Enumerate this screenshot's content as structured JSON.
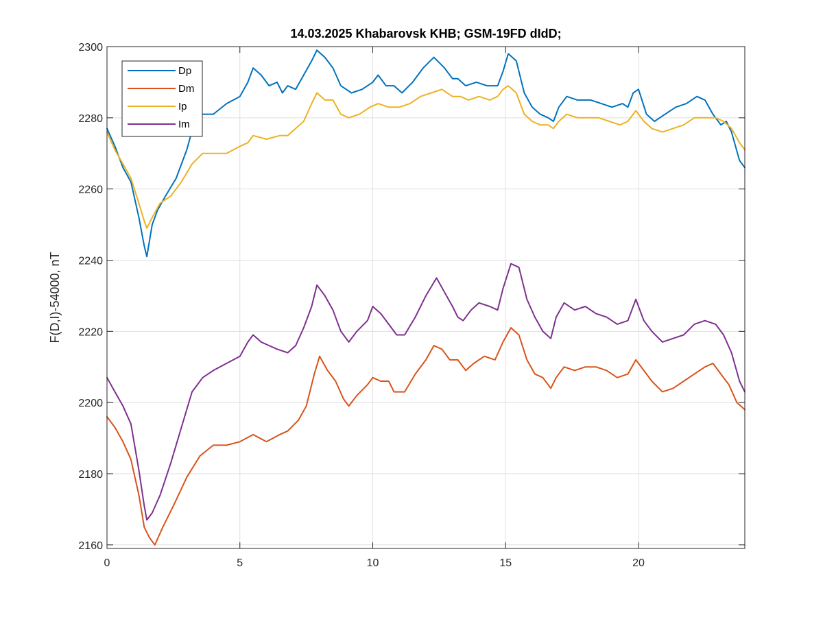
{
  "chart_data": {
    "type": "line",
    "title": "14.03.2025  Khabarovsk KHB; GSM-19FD dIdD;",
    "xlabel": "",
    "ylabel": "F(D,I)-54000, nT",
    "xlim": [
      0,
      24
    ],
    "ylim": [
      2159,
      2300
    ],
    "xticks": [
      0,
      5,
      10,
      15,
      20
    ],
    "yticks": [
      2160,
      2180,
      2200,
      2220,
      2240,
      2260,
      2280,
      2300
    ],
    "grid": true,
    "legend_position": "top-left",
    "series": [
      {
        "name": "Dp",
        "color": "#0072BD",
        "points": [
          [
            0,
            2277
          ],
          [
            0.3,
            2272
          ],
          [
            0.6,
            2266
          ],
          [
            0.9,
            2262
          ],
          [
            1.2,
            2252
          ],
          [
            1.4,
            2244
          ],
          [
            1.5,
            2241
          ],
          [
            1.7,
            2250
          ],
          [
            1.9,
            2254
          ],
          [
            2.2,
            2258
          ],
          [
            2.6,
            2263
          ],
          [
            3.0,
            2271
          ],
          [
            3.3,
            2279
          ],
          [
            3.6,
            2281
          ],
          [
            4.0,
            2281
          ],
          [
            4.5,
            2284
          ],
          [
            5.0,
            2286
          ],
          [
            5.3,
            2290
          ],
          [
            5.5,
            2294
          ],
          [
            5.8,
            2292
          ],
          [
            6.1,
            2289
          ],
          [
            6.4,
            2290
          ],
          [
            6.6,
            2287
          ],
          [
            6.8,
            2289
          ],
          [
            7.1,
            2288
          ],
          [
            7.4,
            2292
          ],
          [
            7.7,
            2296
          ],
          [
            7.9,
            2299
          ],
          [
            8.2,
            2297
          ],
          [
            8.5,
            2294
          ],
          [
            8.8,
            2289
          ],
          [
            9.2,
            2287
          ],
          [
            9.6,
            2288
          ],
          [
            10.0,
            2290
          ],
          [
            10.2,
            2292
          ],
          [
            10.5,
            2289
          ],
          [
            10.8,
            2289
          ],
          [
            11.1,
            2287
          ],
          [
            11.5,
            2290
          ],
          [
            11.9,
            2294
          ],
          [
            12.3,
            2297
          ],
          [
            12.7,
            2294
          ],
          [
            13.0,
            2291
          ],
          [
            13.2,
            2291
          ],
          [
            13.5,
            2289
          ],
          [
            13.9,
            2290
          ],
          [
            14.3,
            2289
          ],
          [
            14.7,
            2289
          ],
          [
            14.9,
            2293
          ],
          [
            15.1,
            2298
          ],
          [
            15.4,
            2296
          ],
          [
            15.7,
            2287
          ],
          [
            16.0,
            2283
          ],
          [
            16.3,
            2281
          ],
          [
            16.6,
            2280
          ],
          [
            16.8,
            2279
          ],
          [
            17.0,
            2283
          ],
          [
            17.3,
            2286
          ],
          [
            17.7,
            2285
          ],
          [
            18.2,
            2285
          ],
          [
            18.6,
            2284
          ],
          [
            19.0,
            2283
          ],
          [
            19.4,
            2284
          ],
          [
            19.6,
            2283
          ],
          [
            19.8,
            2287
          ],
          [
            20.0,
            2288
          ],
          [
            20.3,
            2281
          ],
          [
            20.6,
            2279
          ],
          [
            21.0,
            2281
          ],
          [
            21.4,
            2283
          ],
          [
            21.8,
            2284
          ],
          [
            22.2,
            2286
          ],
          [
            22.5,
            2285
          ],
          [
            22.8,
            2281
          ],
          [
            23.1,
            2278
          ],
          [
            23.3,
            2279
          ],
          [
            23.5,
            2276
          ],
          [
            23.8,
            2268
          ],
          [
            24.0,
            2266
          ]
        ]
      },
      {
        "name": "Dm",
        "color": "#D95319",
        "points": [
          [
            0,
            2196
          ],
          [
            0.3,
            2193
          ],
          [
            0.6,
            2189
          ],
          [
            0.9,
            2184
          ],
          [
            1.2,
            2174
          ],
          [
            1.4,
            2165
          ],
          [
            1.6,
            2162
          ],
          [
            1.8,
            2160
          ],
          [
            2.1,
            2165
          ],
          [
            2.5,
            2171
          ],
          [
            3.0,
            2179
          ],
          [
            3.5,
            2185
          ],
          [
            4.0,
            2188
          ],
          [
            4.5,
            2188
          ],
          [
            5.0,
            2189
          ],
          [
            5.5,
            2191
          ],
          [
            6.0,
            2189
          ],
          [
            6.5,
            2191
          ],
          [
            6.8,
            2192
          ],
          [
            7.2,
            2195
          ],
          [
            7.5,
            2199
          ],
          [
            7.8,
            2208
          ],
          [
            8.0,
            2213
          ],
          [
            8.3,
            2209
          ],
          [
            8.6,
            2206
          ],
          [
            8.9,
            2201
          ],
          [
            9.1,
            2199
          ],
          [
            9.4,
            2202
          ],
          [
            9.8,
            2205
          ],
          [
            10.0,
            2207
          ],
          [
            10.3,
            2206
          ],
          [
            10.6,
            2206
          ],
          [
            10.8,
            2203
          ],
          [
            11.2,
            2203
          ],
          [
            11.6,
            2208
          ],
          [
            12.0,
            2212
          ],
          [
            12.3,
            2216
          ],
          [
            12.6,
            2215
          ],
          [
            12.9,
            2212
          ],
          [
            13.2,
            2212
          ],
          [
            13.5,
            2209
          ],
          [
            13.8,
            2211
          ],
          [
            14.2,
            2213
          ],
          [
            14.6,
            2212
          ],
          [
            14.9,
            2217
          ],
          [
            15.2,
            2221
          ],
          [
            15.5,
            2219
          ],
          [
            15.8,
            2212
          ],
          [
            16.1,
            2208
          ],
          [
            16.4,
            2207
          ],
          [
            16.7,
            2204
          ],
          [
            16.9,
            2207
          ],
          [
            17.2,
            2210
          ],
          [
            17.6,
            2209
          ],
          [
            18.0,
            2210
          ],
          [
            18.4,
            2210
          ],
          [
            18.8,
            2209
          ],
          [
            19.2,
            2207
          ],
          [
            19.6,
            2208
          ],
          [
            19.9,
            2212
          ],
          [
            20.2,
            2209
          ],
          [
            20.5,
            2206
          ],
          [
            20.9,
            2203
          ],
          [
            21.3,
            2204
          ],
          [
            21.7,
            2206
          ],
          [
            22.1,
            2208
          ],
          [
            22.5,
            2210
          ],
          [
            22.8,
            2211
          ],
          [
            23.1,
            2208
          ],
          [
            23.4,
            2205
          ],
          [
            23.7,
            2200
          ],
          [
            24.0,
            2198
          ]
        ]
      },
      {
        "name": "Ip",
        "color": "#EDB120",
        "points": [
          [
            0,
            2276
          ],
          [
            0.3,
            2271
          ],
          [
            0.6,
            2267
          ],
          [
            0.9,
            2263
          ],
          [
            1.2,
            2256
          ],
          [
            1.4,
            2251
          ],
          [
            1.5,
            2249
          ],
          [
            1.7,
            2252
          ],
          [
            2.0,
            2256
          ],
          [
            2.4,
            2258
          ],
          [
            2.8,
            2262
          ],
          [
            3.2,
            2267
          ],
          [
            3.6,
            2270
          ],
          [
            4.0,
            2270
          ],
          [
            4.5,
            2270
          ],
          [
            5.0,
            2272
          ],
          [
            5.3,
            2273
          ],
          [
            5.5,
            2275
          ],
          [
            6.0,
            2274
          ],
          [
            6.5,
            2275
          ],
          [
            6.8,
            2275
          ],
          [
            7.1,
            2277
          ],
          [
            7.4,
            2279
          ],
          [
            7.7,
            2284
          ],
          [
            7.9,
            2287
          ],
          [
            8.2,
            2285
          ],
          [
            8.5,
            2285
          ],
          [
            8.8,
            2281
          ],
          [
            9.1,
            2280
          ],
          [
            9.5,
            2281
          ],
          [
            9.9,
            2283
          ],
          [
            10.2,
            2284
          ],
          [
            10.6,
            2283
          ],
          [
            11.0,
            2283
          ],
          [
            11.4,
            2284
          ],
          [
            11.8,
            2286
          ],
          [
            12.2,
            2287
          ],
          [
            12.6,
            2288
          ],
          [
            13.0,
            2286
          ],
          [
            13.3,
            2286
          ],
          [
            13.6,
            2285
          ],
          [
            14.0,
            2286
          ],
          [
            14.4,
            2285
          ],
          [
            14.7,
            2286
          ],
          [
            14.9,
            2288
          ],
          [
            15.1,
            2289
          ],
          [
            15.4,
            2287
          ],
          [
            15.7,
            2281
          ],
          [
            16.0,
            2279
          ],
          [
            16.3,
            2278
          ],
          [
            16.6,
            2278
          ],
          [
            16.8,
            2277
          ],
          [
            17.0,
            2279
          ],
          [
            17.3,
            2281
          ],
          [
            17.7,
            2280
          ],
          [
            18.1,
            2280
          ],
          [
            18.5,
            2280
          ],
          [
            18.9,
            2279
          ],
          [
            19.3,
            2278
          ],
          [
            19.6,
            2279
          ],
          [
            19.9,
            2282
          ],
          [
            20.2,
            2279
          ],
          [
            20.5,
            2277
          ],
          [
            20.9,
            2276
          ],
          [
            21.3,
            2277
          ],
          [
            21.7,
            2278
          ],
          [
            22.1,
            2280
          ],
          [
            22.5,
            2280
          ],
          [
            22.9,
            2280
          ],
          [
            23.2,
            2279
          ],
          [
            23.5,
            2277
          ],
          [
            23.8,
            2273
          ],
          [
            24.0,
            2271
          ]
        ]
      },
      {
        "name": "Im",
        "color": "#7E2F8E",
        "points": [
          [
            0,
            2207
          ],
          [
            0.3,
            2203
          ],
          [
            0.6,
            2199
          ],
          [
            0.9,
            2194
          ],
          [
            1.2,
            2181
          ],
          [
            1.4,
            2171
          ],
          [
            1.5,
            2167
          ],
          [
            1.7,
            2169
          ],
          [
            2.0,
            2174
          ],
          [
            2.4,
            2183
          ],
          [
            2.8,
            2193
          ],
          [
            3.2,
            2203
          ],
          [
            3.6,
            2207
          ],
          [
            4.0,
            2209
          ],
          [
            4.5,
            2211
          ],
          [
            5.0,
            2213
          ],
          [
            5.3,
            2217
          ],
          [
            5.5,
            2219
          ],
          [
            5.8,
            2217
          ],
          [
            6.1,
            2216
          ],
          [
            6.4,
            2215
          ],
          [
            6.8,
            2214
          ],
          [
            7.1,
            2216
          ],
          [
            7.4,
            2221
          ],
          [
            7.7,
            2227
          ],
          [
            7.9,
            2233
          ],
          [
            8.2,
            2230
          ],
          [
            8.5,
            2226
          ],
          [
            8.8,
            2220
          ],
          [
            9.1,
            2217
          ],
          [
            9.4,
            2220
          ],
          [
            9.8,
            2223
          ],
          [
            10.0,
            2227
          ],
          [
            10.3,
            2225
          ],
          [
            10.6,
            2222
          ],
          [
            10.9,
            2219
          ],
          [
            11.2,
            2219
          ],
          [
            11.6,
            2224
          ],
          [
            12.0,
            2230
          ],
          [
            12.4,
            2235
          ],
          [
            12.7,
            2231
          ],
          [
            13.0,
            2227
          ],
          [
            13.2,
            2224
          ],
          [
            13.4,
            2223
          ],
          [
            13.7,
            2226
          ],
          [
            14.0,
            2228
          ],
          [
            14.4,
            2227
          ],
          [
            14.7,
            2226
          ],
          [
            14.9,
            2232
          ],
          [
            15.2,
            2239
          ],
          [
            15.5,
            2238
          ],
          [
            15.8,
            2229
          ],
          [
            16.1,
            2224
          ],
          [
            16.4,
            2220
          ],
          [
            16.7,
            2218
          ],
          [
            16.9,
            2224
          ],
          [
            17.2,
            2228
          ],
          [
            17.6,
            2226
          ],
          [
            18.0,
            2227
          ],
          [
            18.4,
            2225
          ],
          [
            18.8,
            2224
          ],
          [
            19.2,
            2222
          ],
          [
            19.6,
            2223
          ],
          [
            19.9,
            2229
          ],
          [
            20.2,
            2223
          ],
          [
            20.5,
            2220
          ],
          [
            20.9,
            2217
          ],
          [
            21.3,
            2218
          ],
          [
            21.7,
            2219
          ],
          [
            22.1,
            2222
          ],
          [
            22.5,
            2223
          ],
          [
            22.9,
            2222
          ],
          [
            23.2,
            2219
          ],
          [
            23.5,
            2214
          ],
          [
            23.8,
            2206
          ],
          [
            24.0,
            2203
          ]
        ]
      }
    ]
  }
}
